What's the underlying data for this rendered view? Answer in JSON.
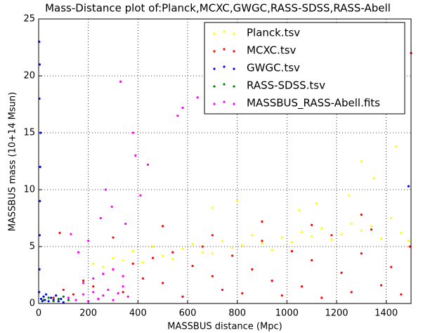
{
  "chart_data": {
    "type": "scatter",
    "title": "Mass-Distance plot of:Planck,MCXC,GWGC,RASS-SDSS,RASS-Abell",
    "x_label": "MASSBUS distance (Mpc)",
    "y_label": "MASSBUS mass (10+14 Msun)",
    "xlim": [
      0,
      1500
    ],
    "ylim": [
      0,
      25
    ],
    "xticks": [
      0,
      200,
      400,
      600,
      800,
      1000,
      1200,
      1400
    ],
    "yticks": [
      0,
      5,
      10,
      15,
      20,
      25
    ],
    "grid": true,
    "legend": "upper right",
    "series": [
      {
        "name": "Planck.tsv",
        "color": "#ffff00",
        "x": [
          220,
          260,
          300,
          340,
          380,
          420,
          460,
          500,
          540,
          580,
          620,
          660,
          700,
          740,
          780,
          820,
          860,
          900,
          940,
          980,
          1020,
          1060,
          1100,
          1140,
          1180,
          1220,
          1260,
          1300,
          1340,
          1380,
          1420,
          1460,
          1490,
          1050,
          1120,
          1250,
          1350,
          900,
          800,
          700,
          1300,
          1440
        ],
        "values": [
          3.5,
          3.2,
          4.0,
          3.8,
          4.6,
          3.6,
          5.0,
          4.2,
          3.9,
          4.8,
          5.2,
          4.5,
          4.4,
          5.5,
          4.9,
          5.1,
          6.0,
          5.3,
          4.7,
          5.8,
          5.4,
          6.3,
          5.9,
          6.6,
          5.6,
          6.1,
          7.0,
          6.4,
          6.8,
          5.7,
          7.5,
          6.2,
          5.5,
          8.2,
          8.8,
          9.5,
          11.0,
          7.2,
          9.0,
          8.4,
          12.5,
          13.8
        ]
      },
      {
        "name": "MCXC.tsv",
        "color": "#ff0000",
        "x": [
          60,
          100,
          140,
          180,
          220,
          260,
          300,
          340,
          380,
          420,
          460,
          500,
          540,
          580,
          620,
          660,
          700,
          740,
          780,
          820,
          860,
          900,
          940,
          980,
          1020,
          1060,
          1100,
          1140,
          1180,
          1220,
          1260,
          1300,
          1340,
          1380,
          1420,
          1460,
          1495,
          300,
          500,
          700,
          900,
          1100,
          1300,
          85,
          1500
        ],
        "values": [
          0.5,
          1.2,
          0.8,
          2.0,
          1.5,
          2.6,
          3.0,
          1.0,
          3.5,
          2.2,
          4.0,
          1.8,
          4.5,
          0.6,
          3.3,
          5.0,
          2.4,
          1.2,
          4.2,
          0.9,
          3.0,
          5.5,
          2.0,
          0.7,
          4.6,
          1.5,
          3.8,
          0.5,
          6.0,
          2.7,
          1.0,
          4.4,
          6.5,
          1.6,
          3.2,
          0.8,
          5.0,
          5.8,
          6.8,
          6.0,
          7.2,
          6.9,
          7.8,
          6.2,
          22.0
        ]
      },
      {
        "name": "GWGC.tsv",
        "color": "#0000ff",
        "x": [
          2,
          3,
          4,
          5,
          6,
          8,
          10,
          15,
          20,
          25,
          30,
          40,
          50,
          60,
          70,
          80,
          90,
          100,
          3,
          2,
          4,
          1490
        ],
        "values": [
          1,
          3,
          6,
          9,
          12,
          15,
          0.4,
          0.2,
          0.6,
          0.3,
          0.8,
          0.2,
          0.5,
          0.3,
          0.7,
          0.2,
          0.4,
          0.1,
          18,
          23,
          21,
          10.3
        ]
      },
      {
        "name": "RASS-SDSS.tsv",
        "color": "#008000",
        "x": [
          20,
          40,
          60,
          80,
          100,
          120
        ],
        "values": [
          0.3,
          0.5,
          0.2,
          0.4,
          0.6,
          0.3
        ]
      },
      {
        "name": "MASSBUS_RASS-Abell.fits",
        "color": "#ff00ff",
        "x": [
          120,
          150,
          180,
          200,
          220,
          240,
          260,
          280,
          300,
          320,
          340,
          360,
          180,
          220,
          260,
          300,
          340,
          330,
          270,
          390,
          560,
          580,
          640,
          440,
          410,
          295,
          250,
          350,
          200,
          160,
          380,
          130
        ],
        "values": [
          0.5,
          0.3,
          0.8,
          0.2,
          1.0,
          0.4,
          0.7,
          1.2,
          0.3,
          0.9,
          1.5,
          0.6,
          1.8,
          2.2,
          2.6,
          3.0,
          2.4,
          19.5,
          10.0,
          13.0,
          16.5,
          17.2,
          18.1,
          12.2,
          9.5,
          8.5,
          7.5,
          7.0,
          5.5,
          4.5,
          15.0,
          6.1
        ]
      }
    ]
  }
}
